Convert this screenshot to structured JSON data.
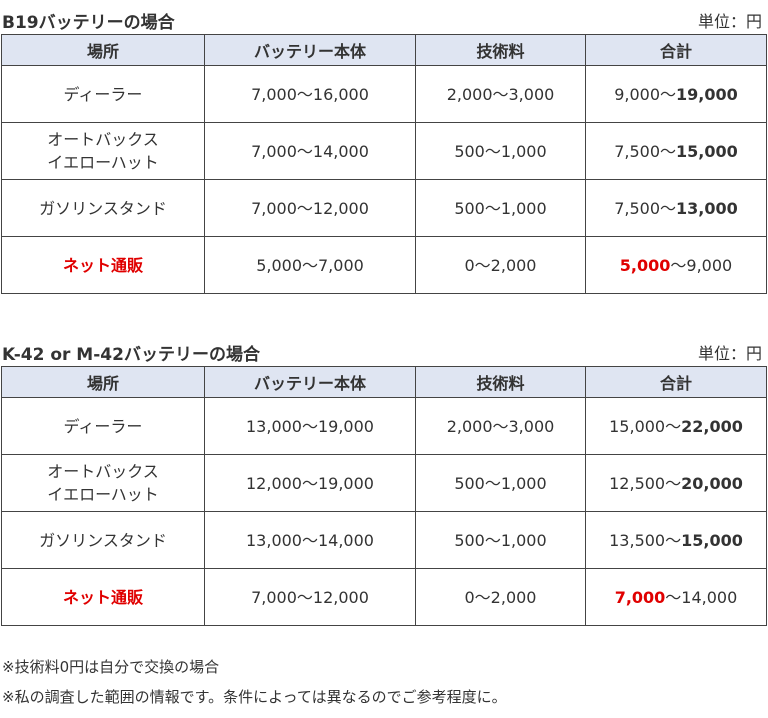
{
  "tables": [
    {
      "title": "B19バッテリーの場合",
      "unit": "単位：円",
      "headers": [
        "場所",
        "バッテリー本体",
        "技術料",
        "合計"
      ],
      "rows": [
        {
          "place": [
            "ディーラー"
          ],
          "battery": "7,000〜16,000",
          "labor": "2,000〜3,000",
          "total_prefix": "9,000〜",
          "total_max": "19,000",
          "red_min": false
        },
        {
          "place": [
            "オートバックス",
            "イエローハット"
          ],
          "battery": "7,000〜14,000",
          "labor": "500〜1,000",
          "total_prefix": "7,500〜",
          "total_max": "15,000",
          "red_min": false
        },
        {
          "place": [
            "ガソリンスタンド"
          ],
          "battery": "7,000〜12,000",
          "labor": "500〜1,000",
          "total_prefix": "7,500〜",
          "total_max": "13,000",
          "red_min": false
        },
        {
          "place": [
            "ネット通販"
          ],
          "battery": "5,000〜7,000",
          "labor": "0〜2,000",
          "total_min": "5,000",
          "total_suffix": "〜9,000",
          "red_min": true
        }
      ]
    },
    {
      "title": "K-42 or M-42バッテリーの場合",
      "unit": "単位：円",
      "headers": [
        "場所",
        "バッテリー本体",
        "技術料",
        "合計"
      ],
      "rows": [
        {
          "place": [
            "ディーラー"
          ],
          "battery": "13,000〜19,000",
          "labor": "2,000〜3,000",
          "total_prefix": "15,000〜",
          "total_max": "22,000",
          "red_min": false
        },
        {
          "place": [
            "オートバックス",
            "イエローハット"
          ],
          "battery": "12,000〜19,000",
          "labor": "500〜1,000",
          "total_prefix": "12,500〜",
          "total_max": "20,000",
          "red_min": false
        },
        {
          "place": [
            "ガソリンスタンド"
          ],
          "battery": "13,000〜14,000",
          "labor": "500〜1,000",
          "total_prefix": "13,500〜",
          "total_max": "15,000",
          "red_min": false
        },
        {
          "place": [
            "ネット通販"
          ],
          "battery": "7,000〜12,000",
          "labor": "0〜2,000",
          "total_min": "7,000",
          "total_suffix": "〜14,000",
          "red_min": true
        }
      ]
    }
  ],
  "notes": [
    "※技術料0円は自分で交換の場合",
    "※私の調査した範囲の情報です。条件によっては異なるのでご参考程度に。"
  ]
}
